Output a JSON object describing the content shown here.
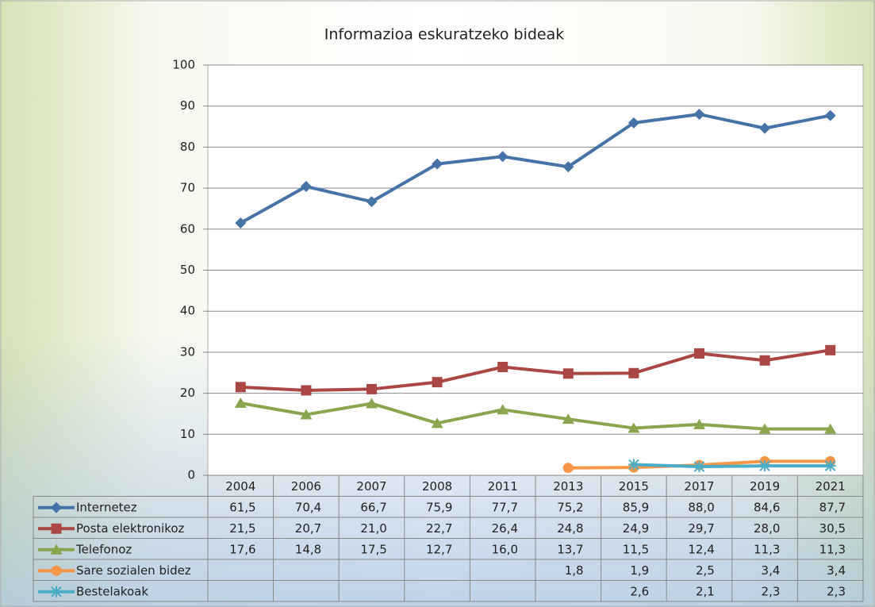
{
  "chart_data": {
    "type": "line",
    "title": "Informazioa eskuratzeko bideak",
    "categories": [
      "2004",
      "2006",
      "2007",
      "2008",
      "2011",
      "2013",
      "2015",
      "2017",
      "2019",
      "2021"
    ],
    "ylim": [
      0,
      100
    ],
    "yticks": [
      0,
      10,
      20,
      30,
      40,
      50,
      60,
      70,
      80,
      90,
      100
    ],
    "grid": true,
    "series": [
      {
        "name": "Internetez",
        "color": "#4572a7",
        "marker": "diamond",
        "values": [
          61.5,
          70.4,
          66.7,
          75.9,
          77.7,
          75.2,
          85.9,
          88.0,
          84.6,
          87.7
        ],
        "value_labels": [
          "61,5",
          "70,4",
          "66,7",
          "75,9",
          "77,7",
          "75,2",
          "85,9",
          "88,0",
          "84,6",
          "87,7"
        ]
      },
      {
        "name": "Posta elektronikoz",
        "color": "#aa4643",
        "marker": "square",
        "values": [
          21.5,
          20.7,
          21.0,
          22.7,
          26.4,
          24.8,
          24.9,
          29.7,
          28.0,
          30.5
        ],
        "value_labels": [
          "21,5",
          "20,7",
          "21,0",
          "22,7",
          "26,4",
          "24,8",
          "24,9",
          "29,7",
          "28,0",
          "30,5"
        ]
      },
      {
        "name": "Telefonoz",
        "color": "#89a54e",
        "marker": "triangle",
        "values": [
          17.6,
          14.8,
          17.5,
          12.7,
          16.0,
          13.7,
          11.5,
          12.4,
          11.3,
          11.3
        ],
        "value_labels": [
          "17,6",
          "14,8",
          "17,5",
          "12,7",
          "16,0",
          "13,7",
          "11,5",
          "12,4",
          "11,3",
          "11,3"
        ]
      },
      {
        "name": "Sare sozialen bidez",
        "color": "#f79646",
        "marker": "circle",
        "values": [
          null,
          null,
          null,
          null,
          null,
          1.8,
          1.9,
          2.5,
          3.4,
          3.4
        ],
        "value_labels": [
          null,
          null,
          null,
          null,
          null,
          "1,8",
          "1,9",
          "2,5",
          "3,4",
          "3,4"
        ]
      },
      {
        "name": "Bestelakoak",
        "color": "#4bacc6",
        "marker": "star",
        "values": [
          null,
          null,
          null,
          null,
          null,
          null,
          2.6,
          2.1,
          2.3,
          2.3
        ],
        "value_labels": [
          null,
          null,
          null,
          null,
          null,
          null,
          "2,6",
          "2,1",
          "2,3",
          "2,3"
        ]
      }
    ]
  }
}
